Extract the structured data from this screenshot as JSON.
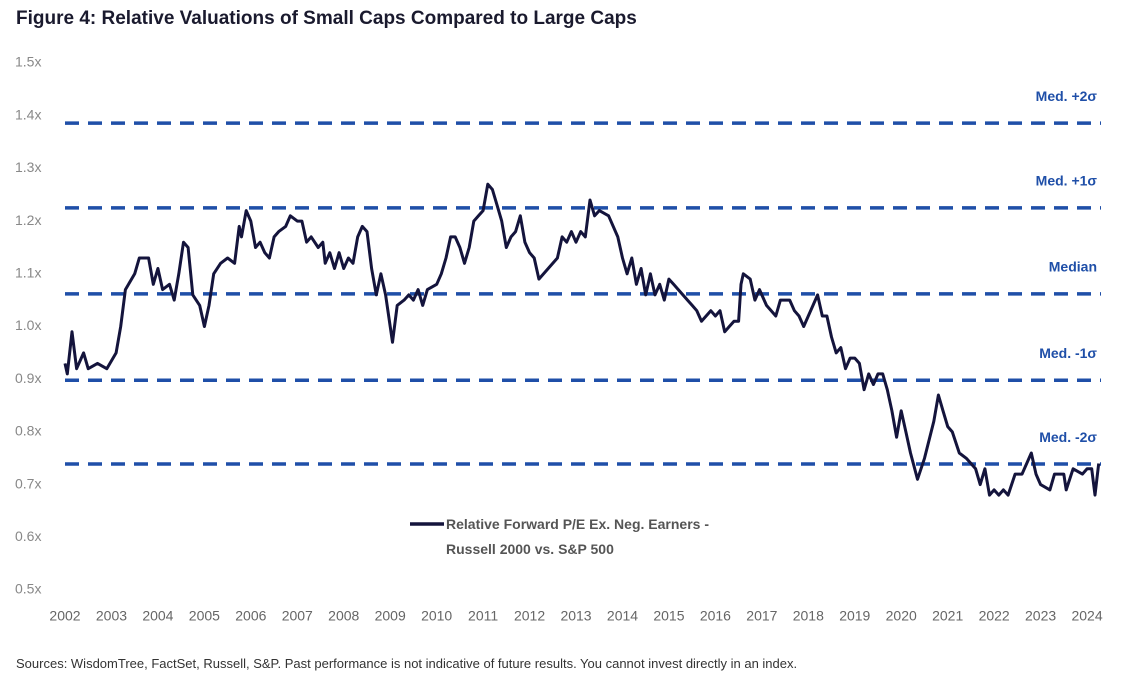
{
  "chart_data": {
    "type": "line",
    "title": "Figure 4: Relative Valuations of Small Caps Compared to Large Caps",
    "source": "Sources: WisdomTree, FactSet, Russell, S&P. Past performance is not indicative of future results. You cannot invest directly in an index.",
    "xlim": [
      2002,
      2024.3
    ],
    "xticks": [
      2002,
      2003,
      2004,
      2005,
      2006,
      2007,
      2008,
      2009,
      2010,
      2011,
      2012,
      2013,
      2014,
      2015,
      2016,
      2017,
      2018,
      2019,
      2020,
      2021,
      2022,
      2023,
      2024
    ],
    "ylim": [
      0.5,
      1.5
    ],
    "yticks": [
      {
        "value": 0.5,
        "label": "0.5x"
      },
      {
        "value": 0.6,
        "label": "0.6x"
      },
      {
        "value": 0.7,
        "label": "0.7x"
      },
      {
        "value": 0.8,
        "label": "0.8x"
      },
      {
        "value": 0.9,
        "label": "0.9x"
      },
      {
        "value": 1.0,
        "label": "1.0x"
      },
      {
        "value": 1.1,
        "label": "1.1x"
      },
      {
        "value": 1.2,
        "label": "1.2x"
      },
      {
        "value": 1.3,
        "label": "1.3x"
      },
      {
        "value": 1.4,
        "label": "1.4x"
      },
      {
        "value": 1.5,
        "label": "1.5x"
      }
    ],
    "grid": false,
    "reference_lines": [
      {
        "label": "Med. +2σ",
        "value": 1.386
      },
      {
        "label": "Med. +1σ",
        "value": 1.225
      },
      {
        "label": "Median",
        "value": 1.062
      },
      {
        "label": "Med. -1σ",
        "value": 0.898
      },
      {
        "label": "Med. -2σ",
        "value": 0.739
      }
    ],
    "reference_color": "#1f4fa8",
    "series": [
      {
        "name": "Relative Forward P/E Ex. Neg. Earners - Russell 2000 vs. S&P 500",
        "color": "#14143c",
        "x": [
          2002.0,
          2002.05,
          2002.15,
          2002.25,
          2002.4,
          2002.5,
          2002.7,
          2002.9,
          2003.1,
          2003.2,
          2003.3,
          2003.5,
          2003.6,
          2003.8,
          2003.9,
          2004.0,
          2004.1,
          2004.25,
          2004.35,
          2004.45,
          2004.55,
          2004.65,
          2004.75,
          2004.9,
          2005.0,
          2005.1,
          2005.2,
          2005.35,
          2005.5,
          2005.65,
          2005.75,
          2005.8,
          2005.9,
          2006.0,
          2006.1,
          2006.2,
          2006.3,
          2006.4,
          2006.5,
          2006.6,
          2006.75,
          2006.85,
          2007.0,
          2007.1,
          2007.2,
          2007.3,
          2007.45,
          2007.55,
          2007.6,
          2007.7,
          2007.8,
          2007.9,
          2008.0,
          2008.1,
          2008.2,
          2008.3,
          2008.4,
          2008.5,
          2008.6,
          2008.7,
          2008.8,
          2008.9,
          2009.0,
          2009.05,
          2009.15,
          2009.3,
          2009.4,
          2009.5,
          2009.6,
          2009.7,
          2009.8,
          2010.0,
          2010.1,
          2010.2,
          2010.3,
          2010.4,
          2010.5,
          2010.6,
          2010.7,
          2010.8,
          2010.9,
          2011.0,
          2011.1,
          2011.2,
          2011.3,
          2011.4,
          2011.5,
          2011.6,
          2011.7,
          2011.8,
          2011.9,
          2012.0,
          2012.1,
          2012.2,
          2012.4,
          2012.6,
          2012.7,
          2012.8,
          2012.9,
          2013.0,
          2013.1,
          2013.2,
          2013.3,
          2013.4,
          2013.5,
          2013.7,
          2013.9,
          2014.0,
          2014.1,
          2014.2,
          2014.3,
          2014.4,
          2014.5,
          2014.6,
          2014.7,
          2014.8,
          2014.9,
          2015.0,
          2015.1,
          2015.3,
          2015.4,
          2015.5,
          2015.6,
          2015.7,
          2015.9,
          2016.0,
          2016.1,
          2016.2,
          2016.3,
          2016.4,
          2016.5,
          2016.55,
          2016.6,
          2016.75,
          2016.85,
          2016.95,
          2017.1,
          2017.2,
          2017.3,
          2017.4,
          2017.6,
          2017.7,
          2017.8,
          2017.9,
          2018.0,
          2018.1,
          2018.2,
          2018.3,
          2018.4,
          2018.5,
          2018.6,
          2018.7,
          2018.8,
          2018.9,
          2019.0,
          2019.1,
          2019.2,
          2019.3,
          2019.4,
          2019.5,
          2019.6,
          2019.7,
          2019.8,
          2019.9,
          2020.0,
          2020.1,
          2020.2,
          2020.35,
          2020.5,
          2020.7,
          2020.8,
          2020.9,
          2021.0,
          2021.1,
          2021.25,
          2021.4,
          2021.6,
          2021.7,
          2021.8,
          2021.9,
          2022.0,
          2022.1,
          2022.2,
          2022.3,
          2022.45,
          2022.6,
          2022.7,
          2022.8,
          2022.9,
          2023.0,
          2023.2,
          2023.3,
          2023.5,
          2023.55,
          2023.7,
          2023.9,
          2024.0,
          2024.1,
          2024.17,
          2024.25
        ],
        "values": [
          0.93,
          0.91,
          0.99,
          0.92,
          0.95,
          0.92,
          0.93,
          0.92,
          0.95,
          1.0,
          1.07,
          1.1,
          1.13,
          1.13,
          1.08,
          1.11,
          1.07,
          1.08,
          1.05,
          1.1,
          1.16,
          1.15,
          1.06,
          1.04,
          1.0,
          1.04,
          1.1,
          1.12,
          1.13,
          1.12,
          1.19,
          1.17,
          1.22,
          1.2,
          1.15,
          1.16,
          1.14,
          1.13,
          1.17,
          1.18,
          1.19,
          1.21,
          1.2,
          1.2,
          1.16,
          1.17,
          1.15,
          1.16,
          1.12,
          1.14,
          1.11,
          1.14,
          1.11,
          1.13,
          1.12,
          1.17,
          1.19,
          1.18,
          1.11,
          1.06,
          1.1,
          1.06,
          1.0,
          0.97,
          1.04,
          1.05,
          1.06,
          1.05,
          1.07,
          1.04,
          1.07,
          1.08,
          1.1,
          1.13,
          1.17,
          1.17,
          1.15,
          1.12,
          1.15,
          1.2,
          1.21,
          1.22,
          1.27,
          1.26,
          1.23,
          1.2,
          1.15,
          1.17,
          1.18,
          1.21,
          1.16,
          1.14,
          1.13,
          1.09,
          1.11,
          1.13,
          1.17,
          1.16,
          1.18,
          1.16,
          1.18,
          1.17,
          1.24,
          1.21,
          1.22,
          1.21,
          1.17,
          1.13,
          1.1,
          1.13,
          1.08,
          1.11,
          1.06,
          1.1,
          1.06,
          1.08,
          1.05,
          1.09,
          1.08,
          1.06,
          1.05,
          1.04,
          1.03,
          1.01,
          1.03,
          1.02,
          1.03,
          0.99,
          1.0,
          1.01,
          1.01,
          1.08,
          1.1,
          1.09,
          1.05,
          1.07,
          1.04,
          1.03,
          1.02,
          1.05,
          1.05,
          1.03,
          1.02,
          1.0,
          1.02,
          1.04,
          1.06,
          1.02,
          1.02,
          0.98,
          0.95,
          0.96,
          0.92,
          0.94,
          0.94,
          0.93,
          0.88,
          0.91,
          0.89,
          0.91,
          0.91,
          0.88,
          0.84,
          0.79,
          0.84,
          0.8,
          0.76,
          0.71,
          0.75,
          0.82,
          0.87,
          0.84,
          0.81,
          0.8,
          0.76,
          0.75,
          0.73,
          0.7,
          0.73,
          0.68,
          0.69,
          0.68,
          0.69,
          0.68,
          0.72,
          0.72,
          0.74,
          0.76,
          0.72,
          0.7,
          0.69,
          0.72,
          0.72,
          0.69,
          0.73,
          0.72,
          0.73,
          0.73,
          0.68,
          0.74
        ]
      }
    ]
  }
}
